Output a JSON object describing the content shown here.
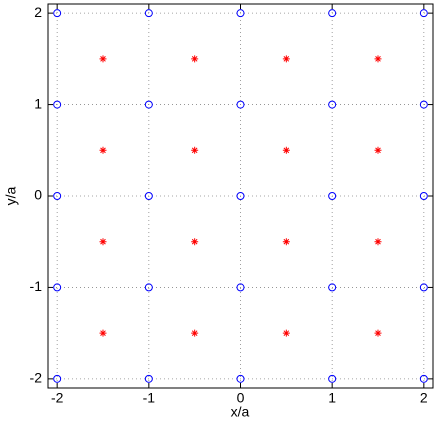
{
  "chart_data": {
    "type": "scatter",
    "xlabel": "x/a",
    "ylabel": "y/a",
    "xlim": [
      -2.1,
      2.1
    ],
    "ylim": [
      -2.1,
      2.1
    ],
    "xticks": [
      -2,
      -1,
      0,
      1,
      2
    ],
    "yticks": [
      -2,
      -1,
      0,
      1,
      2
    ],
    "grid": true,
    "series": [
      {
        "color": "#0000ff",
        "marker": "o",
        "x": [
          -2,
          -1,
          0,
          1,
          2,
          -2,
          -1,
          0,
          1,
          2,
          -2,
          -1,
          0,
          1,
          2,
          -2,
          -1,
          0,
          1,
          2,
          -2,
          -1,
          0,
          1,
          2
        ],
        "values": [
          2,
          2,
          2,
          2,
          2,
          1,
          1,
          1,
          1,
          1,
          0,
          0,
          0,
          0,
          0,
          -1,
          -1,
          -1,
          -1,
          -1,
          -2,
          -2,
          -2,
          -2,
          -2
        ]
      },
      {
        "color": "#ff0000",
        "marker": "*",
        "x": [
          -1.5,
          -0.5,
          0.5,
          1.5,
          -1.5,
          -0.5,
          0.5,
          1.5,
          -1.5,
          -0.5,
          0.5,
          1.5,
          -1.5,
          -0.5,
          0.5,
          1.5
        ],
        "values": [
          1.5,
          1.5,
          1.5,
          1.5,
          0.5,
          0.5,
          0.5,
          0.5,
          -0.5,
          -0.5,
          -0.5,
          -0.5,
          -1.5,
          -1.5,
          -1.5,
          -1.5
        ]
      }
    ]
  }
}
